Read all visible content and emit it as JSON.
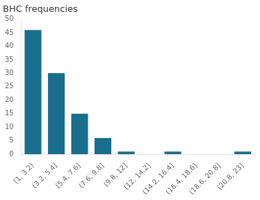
{
  "chart_data": {
    "type": "bar",
    "title": "BHC frequencies",
    "categories": [
      "[1, 3.2)",
      "(3.2, 5.4]",
      "(5.4, 7.6]",
      "(7.6, 9.8]",
      "(9.8, 12]",
      "(12, 14.2]",
      "(14.2, 16.4]",
      "(16.4, 18.6]",
      "(18.6, 20.8]",
      "(20.8, 23]"
    ],
    "values": [
      46,
      30,
      15,
      6,
      1,
      0,
      1,
      0,
      0,
      1
    ],
    "color": "#1a6e8e",
    "ylim": [
      0,
      50
    ],
    "yticks": [
      0,
      5,
      10,
      15,
      20,
      25,
      30,
      35,
      40,
      45,
      50
    ],
    "grid": false
  }
}
